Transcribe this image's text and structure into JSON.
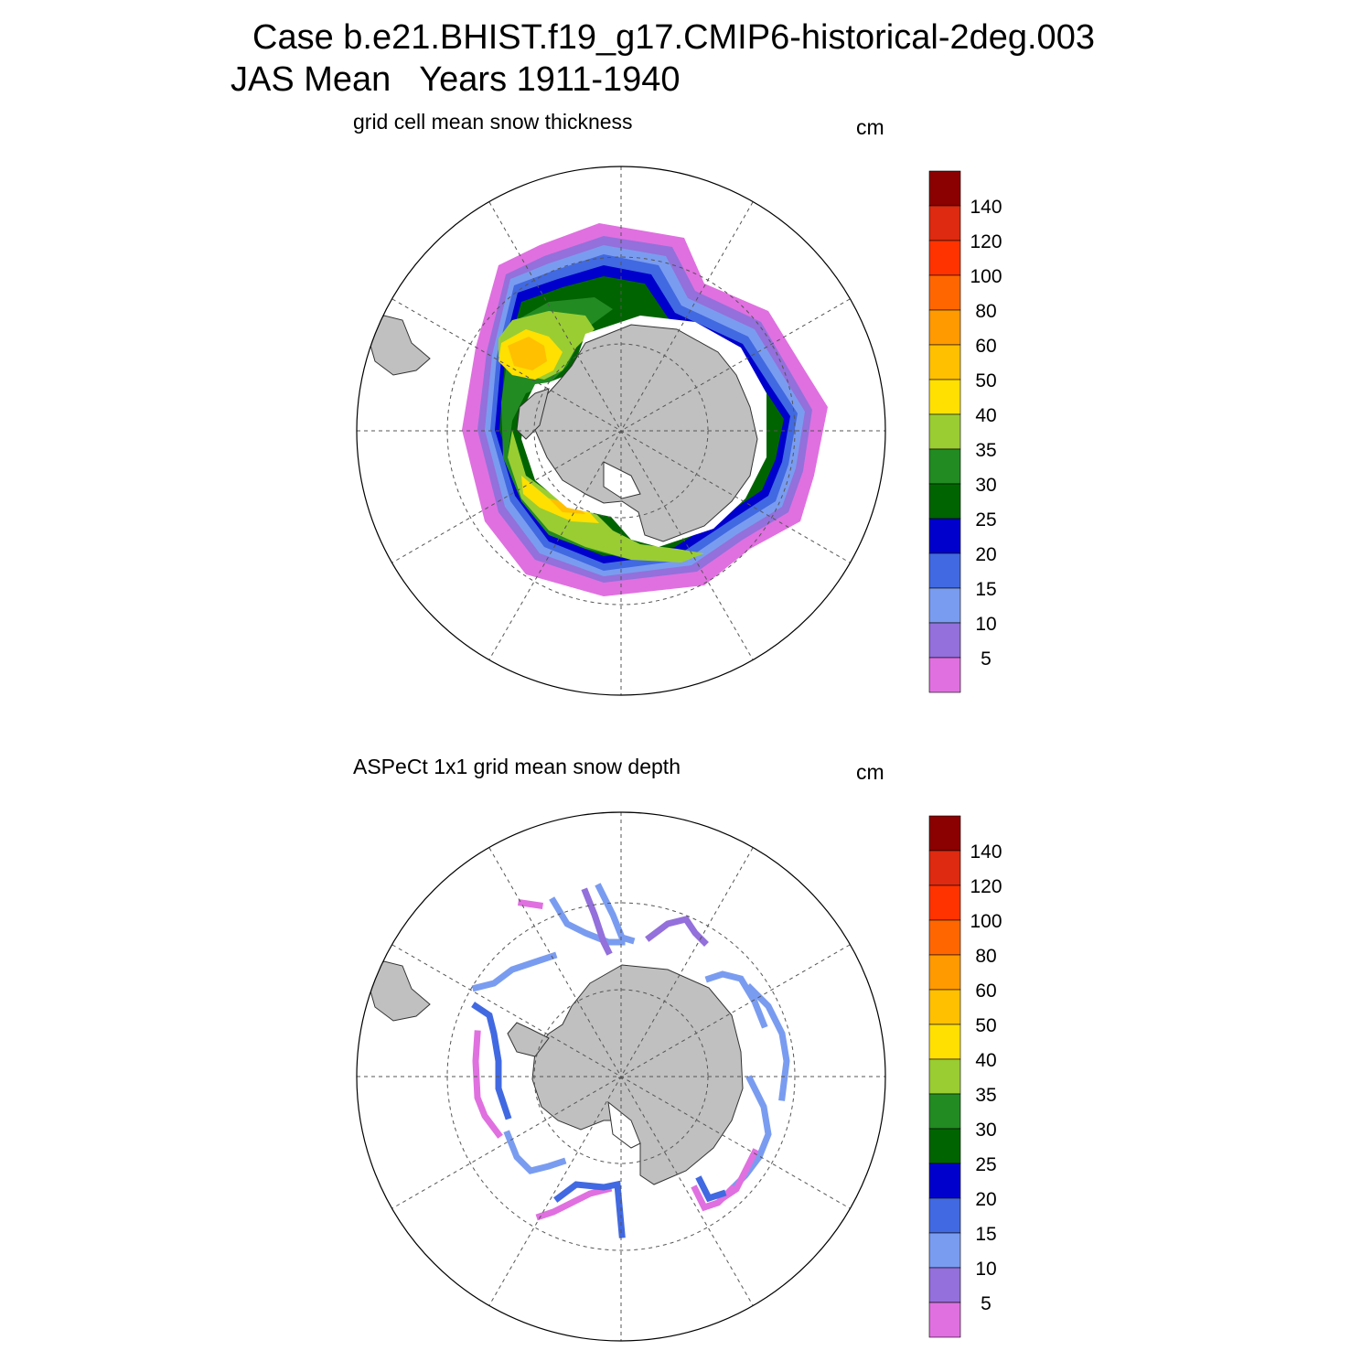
{
  "title": {
    "line1": "Case b.e21.BHIST.f19_g17.CMIP6-historical-2deg.003",
    "line2": "JAS Mean   Years 1911-1940"
  },
  "panels": [
    {
      "title": "grid cell mean snow thickness",
      "units": "cm"
    },
    {
      "title": "ASPeCt 1x1 grid mean snow depth",
      "units": "cm"
    }
  ],
  "colorbar": {
    "labels": [
      "5",
      "10",
      "15",
      "20",
      "25",
      "30",
      "35",
      "40",
      "50",
      "60",
      "80",
      "100",
      "120",
      "140"
    ],
    "colors": [
      "#e070e0",
      "#9370db",
      "#7a9cf0",
      "#4169e1",
      "#0000cd",
      "#006400",
      "#228b22",
      "#9acd32",
      "#ffe000",
      "#ffc000",
      "#ff9a00",
      "#ff6600",
      "#ff3300",
      "#dd2a10",
      "#8b0000"
    ]
  },
  "colors": {
    "land": "#c0c0c0",
    "grid": "#555555"
  }
}
